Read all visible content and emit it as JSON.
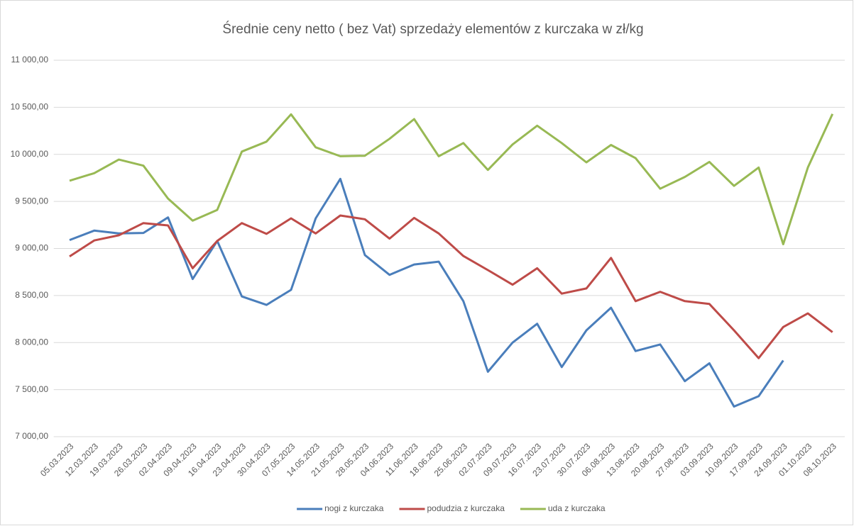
{
  "chart_data": {
    "type": "line",
    "title": "Średnie ceny netto ( bez Vat) sprzedaży elementów z kurczaka w zł/kg",
    "categories": [
      "05.03.2023",
      "12.03.2023",
      "19.03.2023",
      "26.03.2023",
      "02.04.2023",
      "09.04.2023",
      "16.04.2023",
      "23.04.2023",
      "30.04.2023",
      "07.05.2023",
      "14.05.2023",
      "21.05.2023",
      "28.05.2023",
      "04.06.2023",
      "11.06.2023",
      "18.06.2023",
      "25.06.2023",
      "02.07.2023",
      "09.07.2023",
      "16.07.2023",
      "23.07.2023",
      "30.07.2023",
      "06.08.2023",
      "13.08.2023",
      "20.08.2023",
      "27.08.2023",
      "03.09.2023",
      "10.09.2023",
      "17.09.2023",
      "24.09.2023",
      "01.10.2023",
      "08.10.2023"
    ],
    "series": [
      {
        "name": "nogi z kurczaka",
        "color": "#4a7ebb",
        "values": [
          9090,
          9190,
          9160,
          9165,
          9330,
          8675,
          9080,
          8490,
          8400,
          8560,
          9320,
          9740,
          8930,
          8720,
          8830,
          8860,
          8440,
          7690,
          8000,
          8200,
          7740,
          8130,
          8370,
          7910,
          7980,
          7590,
          7780,
          7320,
          7430,
          7810,
          null,
          null
        ]
      },
      {
        "name": "podudzia z kurczaka",
        "color": "#be4b48",
        "values": [
          8915,
          9085,
          9140,
          9270,
          9245,
          8790,
          9080,
          9270,
          9155,
          9320,
          9160,
          9350,
          9310,
          9105,
          9325,
          9160,
          8920,
          8770,
          8615,
          8790,
          8520,
          8575,
          8900,
          8440,
          8540,
          8440,
          8410,
          8130,
          7835,
          8165,
          8310,
          8110
        ]
      },
      {
        "name": "uda z kurczaka",
        "color": "#98b954",
        "values": [
          9720,
          9800,
          9945,
          9880,
          9530,
          9295,
          9410,
          10030,
          10135,
          10425,
          10075,
          9980,
          9985,
          10165,
          10375,
          9980,
          10120,
          9835,
          10105,
          10305,
          10120,
          9915,
          10100,
          9960,
          9635,
          9760,
          9920,
          9665,
          9860,
          9045,
          9860,
          10430
        ]
      }
    ],
    "ylim": [
      7000,
      11000
    ],
    "yticks": [
      {
        "value": 7000,
        "label": "7 000,00"
      },
      {
        "value": 7500,
        "label": "7 500,00"
      },
      {
        "value": 8000,
        "label": "8 000,00"
      },
      {
        "value": 8500,
        "label": "8 500,00"
      },
      {
        "value": 9000,
        "label": "9 000,00"
      },
      {
        "value": 9500,
        "label": "9 500,00"
      },
      {
        "value": 10000,
        "label": "10 000,00"
      },
      {
        "value": 10500,
        "label": "10 500,00"
      },
      {
        "value": 11000,
        "label": "11 000,00"
      }
    ],
    "grid": true,
    "legend": "bottom"
  }
}
